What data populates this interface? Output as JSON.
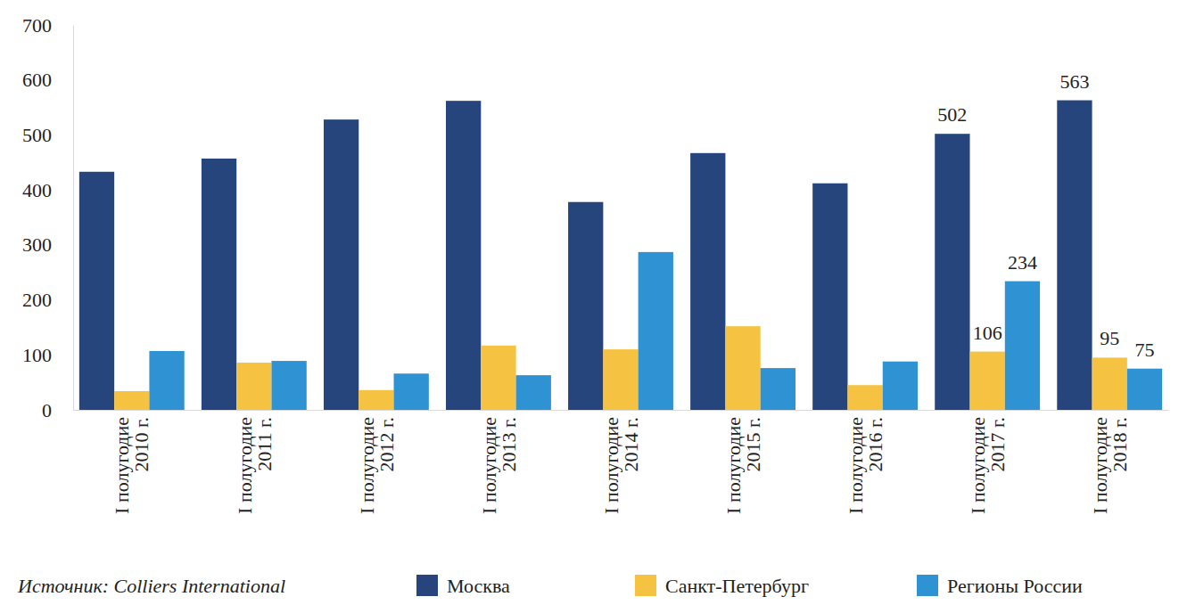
{
  "chart_data": {
    "type": "bar",
    "source": "Источник: Colliers International",
    "categories": [
      "I полугодие 2010 г.",
      "I полугодие 2011 г.",
      "I полугодие 2012 г.",
      "I полугодие 2013 г.",
      "I полугодие 2014 г.",
      "I полугодие 2015 г.",
      "I полугодие 2016 г.",
      "I полугодие 2017 г.",
      "I полугодие 2018 г."
    ],
    "series": [
      {
        "name": "Москва",
        "color": "#27457d",
        "values": [
          433,
          457,
          528,
          562,
          378,
          467,
          412,
          502,
          563
        ],
        "value_labels": [
          null,
          null,
          null,
          null,
          null,
          null,
          null,
          "502",
          "563"
        ]
      },
      {
        "name": "Санкт-Петербург",
        "color": "#f5c242",
        "values": [
          34,
          86,
          36,
          117,
          110,
          152,
          45,
          106,
          95
        ],
        "value_labels": [
          null,
          null,
          null,
          null,
          null,
          null,
          null,
          "106",
          "95"
        ]
      },
      {
        "name": "Регионы России",
        "color": "#2e92d3",
        "values": [
          107,
          89,
          66,
          63,
          287,
          76,
          88,
          234,
          75
        ],
        "value_labels": [
          null,
          null,
          null,
          null,
          null,
          null,
          null,
          "234",
          "75"
        ]
      }
    ],
    "ylim": [
      0,
      700
    ],
    "yticks": [
      0,
      100,
      200,
      300,
      400,
      500,
      600,
      700
    ],
    "grid": false,
    "legend": "bottom",
    "data_labels": true
  }
}
